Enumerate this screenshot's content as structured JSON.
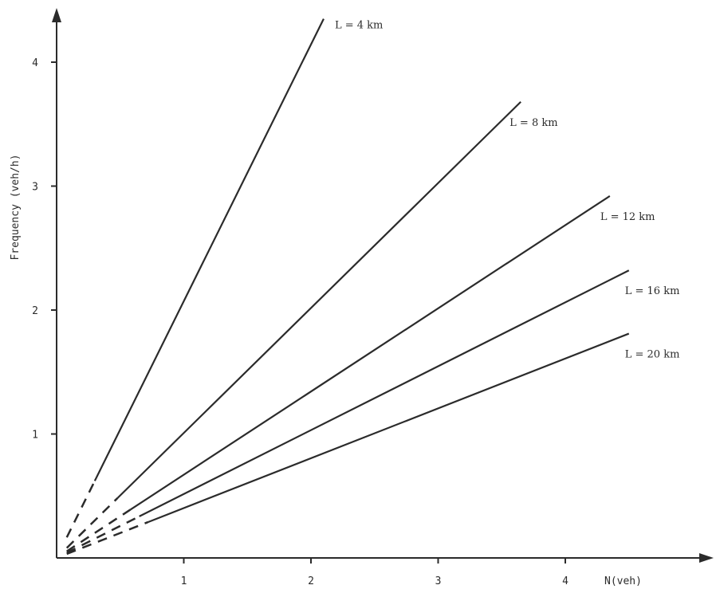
{
  "chart_data": {
    "type": "line",
    "title": "",
    "xlabel": "N(veh)",
    "ylabel": "Frequency (veh/h)",
    "xlim": [
      0,
      5
    ],
    "ylim": [
      0,
      4.5
    ],
    "xticks": [
      1,
      2,
      3,
      4
    ],
    "yticks": [
      1,
      2,
      3,
      4
    ],
    "grid": false,
    "legend": "labels at line ends",
    "series": [
      {
        "name": "L = 4 km",
        "x": [
          0,
          2.1
        ],
        "y": [
          0,
          4.35
        ],
        "dashed_until_x": 0.3
      },
      {
        "name": "L = 8 km",
        "x": [
          0,
          3.65
        ],
        "y": [
          0,
          3.68
        ],
        "dashed_until_x": 0.48
      },
      {
        "name": "L = 12 km",
        "x": [
          0,
          4.35
        ],
        "y": [
          0,
          2.92
        ],
        "dashed_until_x": 0.58
      },
      {
        "name": "L = 16 km",
        "x": [
          0,
          4.5
        ],
        "y": [
          0,
          2.32
        ],
        "dashed_until_x": 0.65
      },
      {
        "name": "L = 20 km",
        "x": [
          0,
          4.5
        ],
        "y": [
          0,
          1.81
        ],
        "dashed_until_x": 0.72
      }
    ]
  }
}
